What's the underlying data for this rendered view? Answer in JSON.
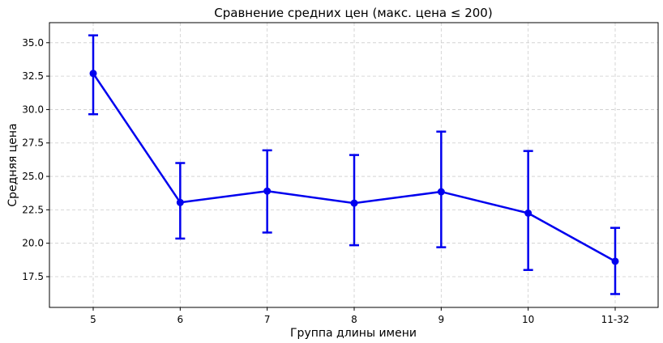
{
  "chart_data": {
    "type": "line",
    "title": "Сравнение средних цен (макс. цена ≤ 200)",
    "xlabel": "Группа длины имени",
    "ylabel": "Средняя цена",
    "categories": [
      "5",
      "6",
      "7",
      "8",
      "9",
      "10",
      "11-32"
    ],
    "series": [
      {
        "values": [
          32.7,
          23.05,
          23.9,
          23.0,
          23.85,
          22.25,
          18.65
        ],
        "err_low": [
          29.65,
          20.35,
          20.8,
          19.85,
          19.7,
          18.0,
          16.2
        ],
        "err_high": [
          35.55,
          26.0,
          26.95,
          26.6,
          28.35,
          26.9,
          21.15
        ]
      }
    ],
    "ylim": [
      15.2,
      36.5
    ],
    "yticks": [
      17.5,
      20.0,
      22.5,
      25.0,
      27.5,
      30.0,
      32.5,
      35.0
    ],
    "ytick_labels": [
      "17.5",
      "20.0",
      "22.5",
      "25.0",
      "27.5",
      "30.0",
      "32.5",
      "35.0"
    ],
    "grid": true,
    "color": "#0000ee"
  }
}
